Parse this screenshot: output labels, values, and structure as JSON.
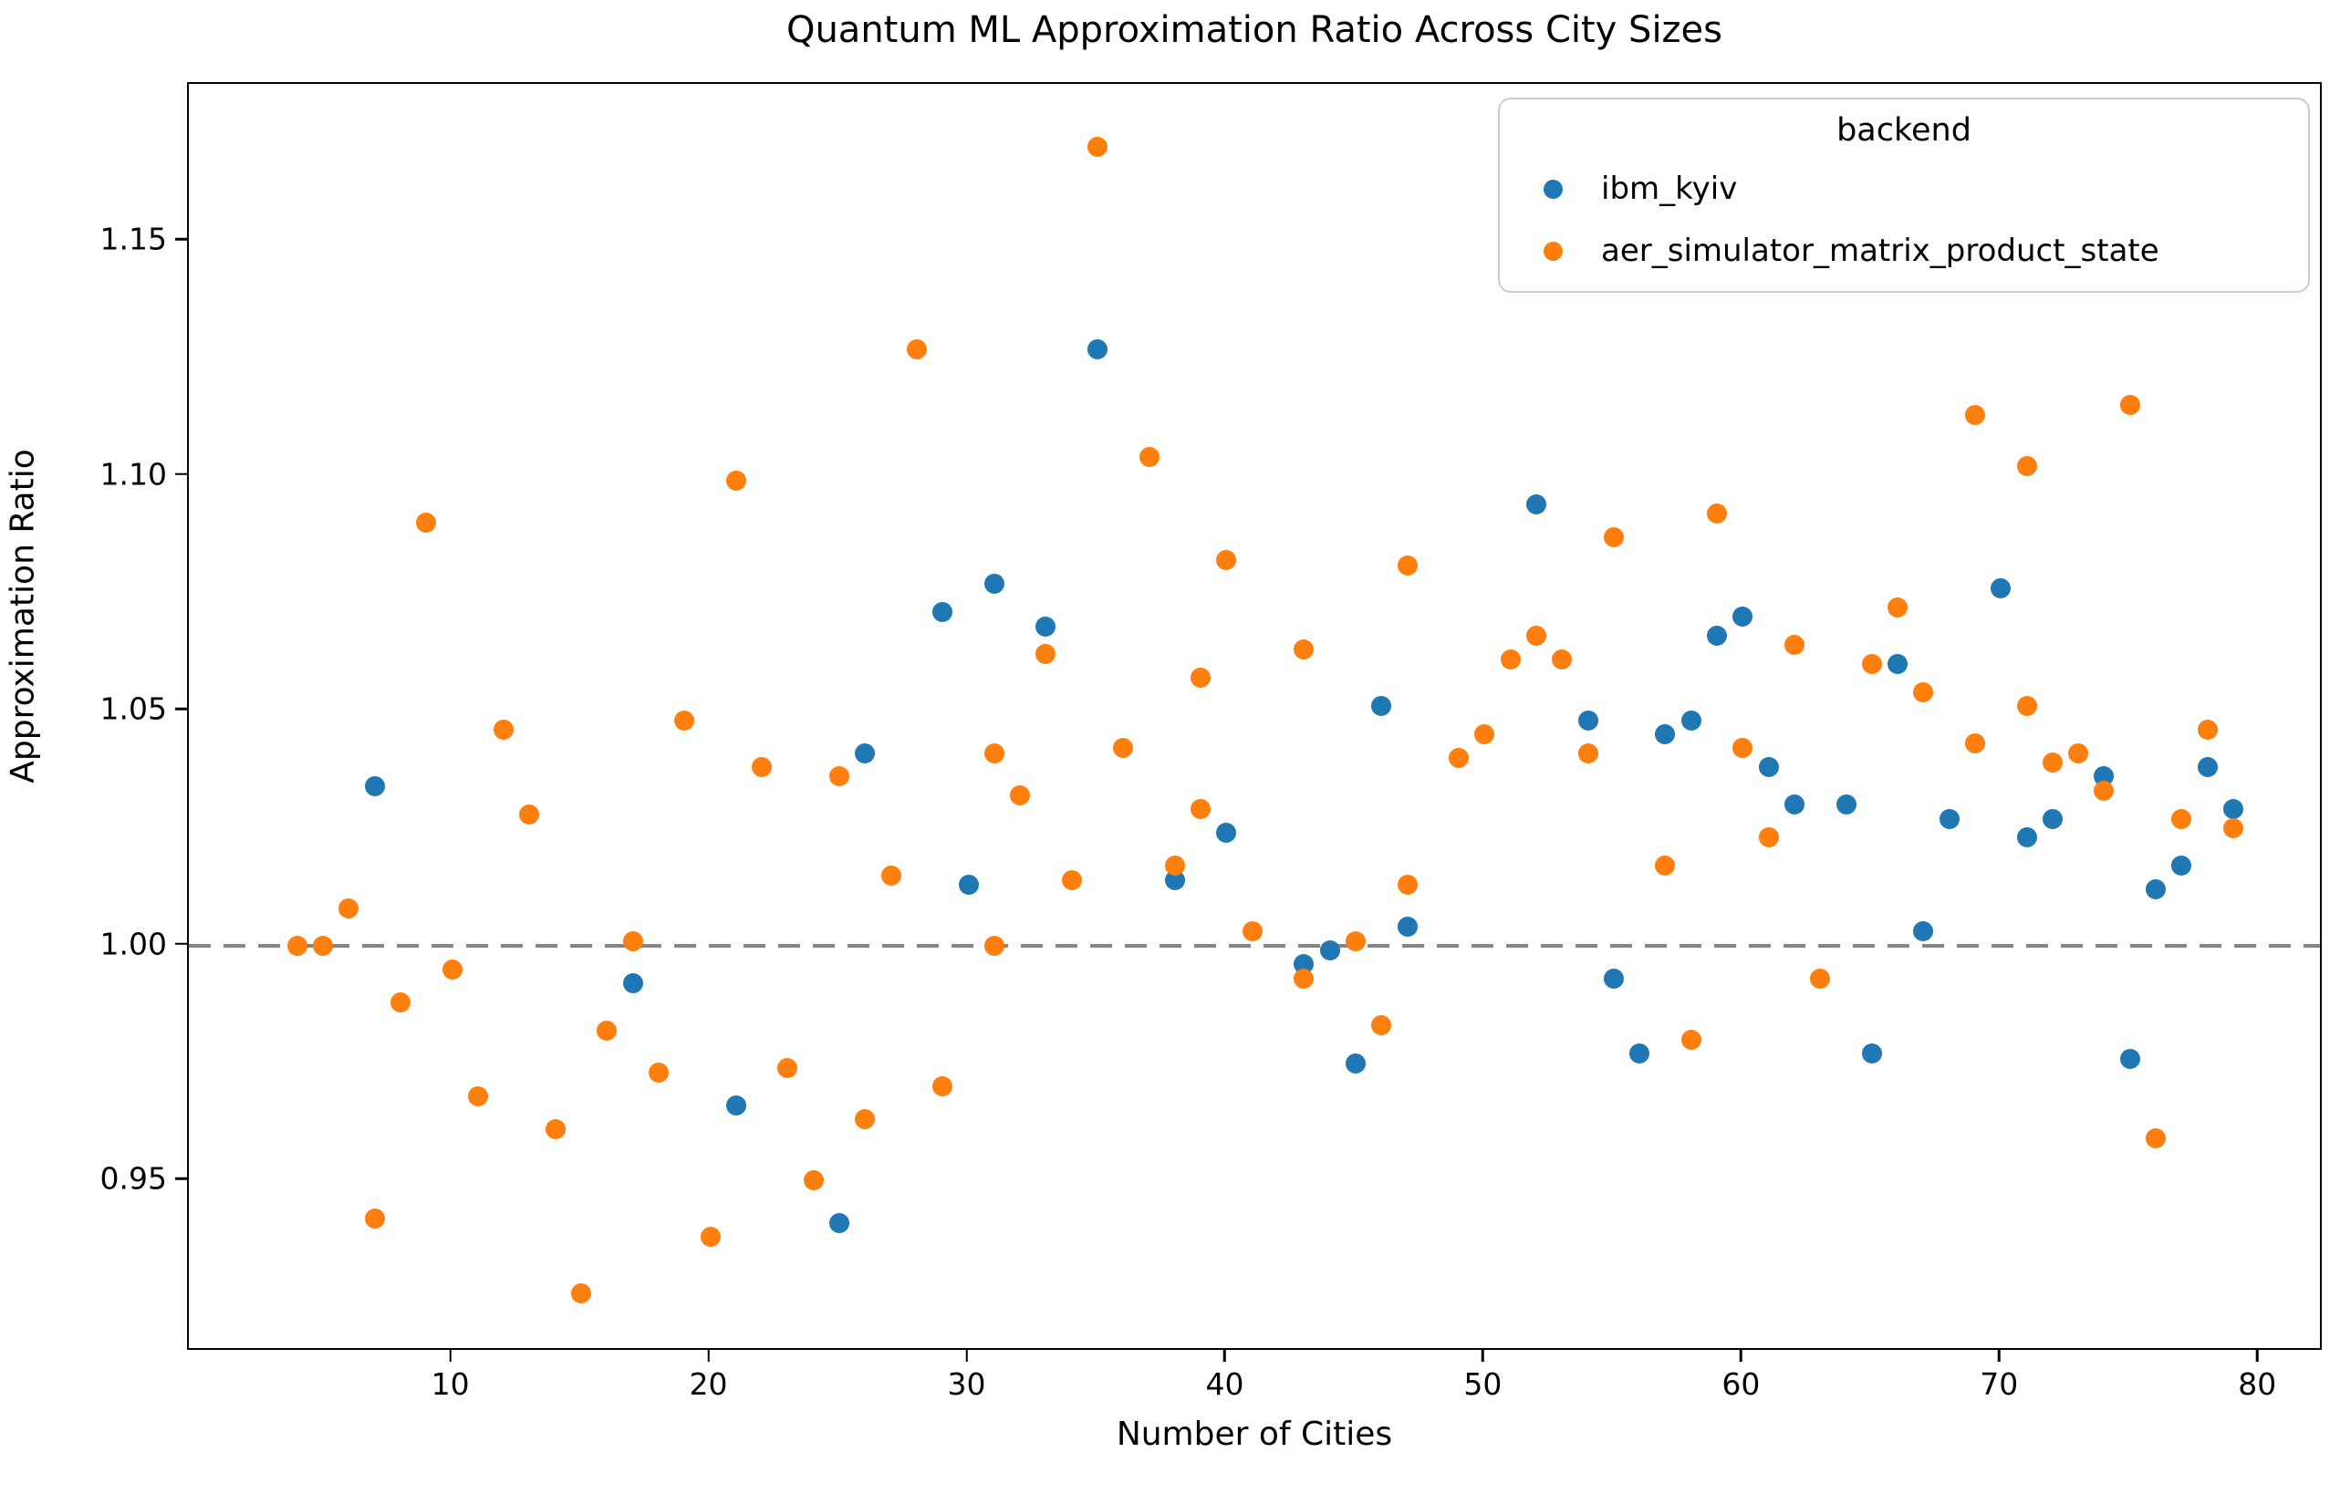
{
  "figure": {
    "title": "Quantum ML Approximation Ratio Across City Sizes"
  },
  "chart_data": {
    "type": "scatter",
    "title": "Quantum ML Approximation Ratio Across City Sizes",
    "xlabel": "Number of Cities",
    "ylabel": "Approximation Ratio",
    "xlim": [
      -0.2,
      82.5
    ],
    "ylim": [
      0.9136,
      1.1834
    ],
    "x_ticks": [
      10,
      20,
      30,
      40,
      50,
      60,
      70,
      80
    ],
    "y_ticks": [
      0.95,
      1.0,
      1.05,
      1.1,
      1.15
    ],
    "y_tick_labels": [
      "0.95",
      "1.00",
      "1.05",
      "1.10",
      "1.15"
    ],
    "grid": "off",
    "reference_line": {
      "y": 1.0,
      "style": "dashed",
      "color": "#858585"
    },
    "legend": {
      "title": "backend",
      "position": "upper right"
    },
    "series": [
      {
        "name": "ibm_kyiv",
        "color": "#1f77b4",
        "points": [
          [
            7,
            1.034
          ],
          [
            17,
            0.992
          ],
          [
            21,
            0.966
          ],
          [
            25,
            0.941
          ],
          [
            26,
            1.041
          ],
          [
            29,
            1.071
          ],
          [
            30,
            1.013
          ],
          [
            31,
            1.077
          ],
          [
            33,
            1.068
          ],
          [
            35,
            1.127
          ],
          [
            38,
            1.014
          ],
          [
            40,
            1.024
          ],
          [
            43,
            0.996
          ],
          [
            44,
            0.999
          ],
          [
            45,
            0.975
          ],
          [
            46,
            1.051
          ],
          [
            47,
            1.004
          ],
          [
            52,
            1.094
          ],
          [
            54,
            1.048
          ],
          [
            55,
            0.993
          ],
          [
            56,
            0.977
          ],
          [
            57,
            1.045
          ],
          [
            58,
            1.048
          ],
          [
            59,
            1.066
          ],
          [
            60,
            1.07
          ],
          [
            61,
            1.038
          ],
          [
            62,
            1.03
          ],
          [
            64,
            1.03
          ],
          [
            65,
            0.977
          ],
          [
            66,
            1.06
          ],
          [
            67,
            1.003
          ],
          [
            68,
            1.027
          ],
          [
            70,
            1.076
          ],
          [
            71,
            1.023
          ],
          [
            72,
            1.027
          ],
          [
            74,
            1.036
          ],
          [
            75,
            0.976
          ],
          [
            76,
            1.012
          ],
          [
            77,
            1.017
          ],
          [
            78,
            1.038
          ],
          [
            79,
            1.029
          ]
        ]
      },
      {
        "name": "aer_simulator_matrix_product_state",
        "color": "#ff7f0e",
        "points": [
          [
            4,
            1.0
          ],
          [
            5,
            1.0
          ],
          [
            6,
            1.008
          ],
          [
            7,
            0.942
          ],
          [
            8,
            0.988
          ],
          [
            9,
            1.09
          ],
          [
            10,
            0.995
          ],
          [
            11,
            0.968
          ],
          [
            12,
            1.046
          ],
          [
            13,
            1.028
          ],
          [
            14,
            0.961
          ],
          [
            15,
            0.926
          ],
          [
            16,
            0.982
          ],
          [
            17,
            1.001
          ],
          [
            18,
            0.973
          ],
          [
            19,
            1.048
          ],
          [
            20,
            0.938
          ],
          [
            21,
            1.099
          ],
          [
            22,
            1.038
          ],
          [
            23,
            0.974
          ],
          [
            24,
            0.95
          ],
          [
            25,
            1.036
          ],
          [
            26,
            0.963
          ],
          [
            27,
            1.015
          ],
          [
            28,
            1.127
          ],
          [
            29,
            0.97
          ],
          [
            31,
            1.041
          ],
          [
            31,
            1.0
          ],
          [
            32,
            1.032
          ],
          [
            33,
            1.062
          ],
          [
            34,
            1.014
          ],
          [
            35,
            1.17
          ],
          [
            36,
            1.042
          ],
          [
            37,
            1.104
          ],
          [
            38,
            1.017
          ],
          [
            39,
            1.057
          ],
          [
            39,
            1.029
          ],
          [
            40,
            1.082
          ],
          [
            41,
            1.003
          ],
          [
            43,
            1.063
          ],
          [
            43,
            0.993
          ],
          [
            45,
            1.001
          ],
          [
            46,
            0.983
          ],
          [
            47,
            1.081
          ],
          [
            47,
            1.013
          ],
          [
            49,
            1.04
          ],
          [
            50,
            1.045
          ],
          [
            51,
            1.061
          ],
          [
            52,
            1.066
          ],
          [
            53,
            1.061
          ],
          [
            54,
            1.041
          ],
          [
            55,
            1.087
          ],
          [
            57,
            1.017
          ],
          [
            58,
            0.98
          ],
          [
            59,
            1.092
          ],
          [
            60,
            1.042
          ],
          [
            61,
            1.023
          ],
          [
            62,
            1.064
          ],
          [
            63,
            0.993
          ],
          [
            65,
            1.06
          ],
          [
            66,
            1.072
          ],
          [
            67,
            1.054
          ],
          [
            69,
            1.113
          ],
          [
            69,
            1.043
          ],
          [
            71,
            1.102
          ],
          [
            71,
            1.051
          ],
          [
            72,
            1.039
          ],
          [
            73,
            1.041
          ],
          [
            74,
            1.033
          ],
          [
            75,
            1.115
          ],
          [
            76,
            0.959
          ],
          [
            77,
            1.027
          ],
          [
            78,
            1.046
          ],
          [
            79,
            1.025
          ]
        ]
      }
    ]
  }
}
